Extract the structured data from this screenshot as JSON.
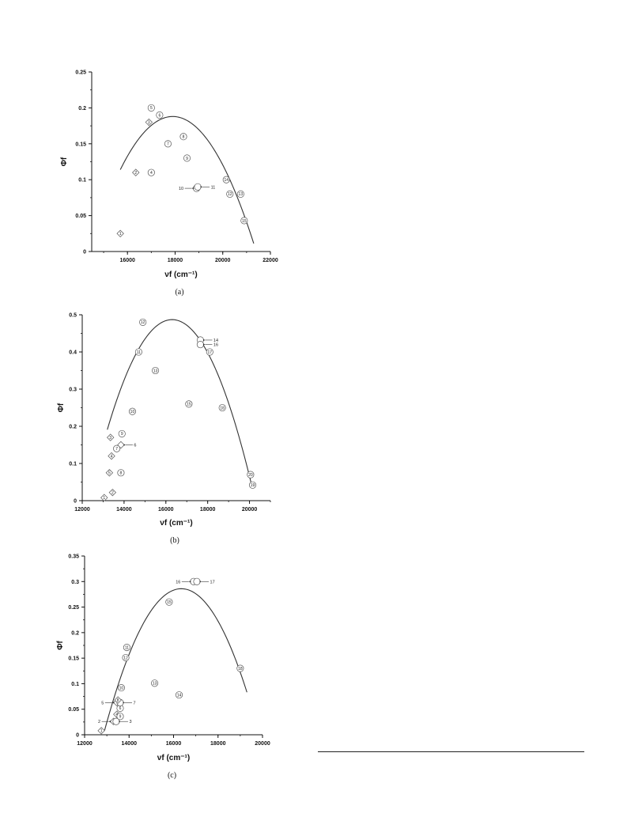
{
  "chart_data": [
    {
      "type": "scatter",
      "caption": "(a)",
      "ylabel": "Φf",
      "xlabel": "νf (cm⁻¹)",
      "xlim": [
        14500,
        22000
      ],
      "ylim": [
        0,
        0.25
      ],
      "xticks": [
        "16000",
        "18000",
        "20000",
        "22000"
      ],
      "yticks": [
        "0",
        "0.05",
        "0.1",
        "0.15",
        "0.2",
        "0.25"
      ],
      "grid": false,
      "points": [
        {
          "id": "1",
          "x": 15700,
          "y": 0.025,
          "marker": "diamond"
        },
        {
          "id": "2",
          "x": 16350,
          "y": 0.11,
          "marker": "diamond"
        },
        {
          "id": "3",
          "x": 16900,
          "y": 0.18,
          "marker": "diamond"
        },
        {
          "id": "4",
          "x": 17000,
          "y": 0.11,
          "marker": "circle"
        },
        {
          "id": "5",
          "x": 17000,
          "y": 0.2,
          "marker": "circle"
        },
        {
          "id": "6",
          "x": 17350,
          "y": 0.19,
          "marker": "circle"
        },
        {
          "id": "7",
          "x": 17700,
          "y": 0.15,
          "marker": "circle"
        },
        {
          "id": "8",
          "x": 18350,
          "y": 0.16,
          "marker": "circle"
        },
        {
          "id": "9",
          "x": 18500,
          "y": 0.13,
          "marker": "circle"
        },
        {
          "id": "10",
          "x": 18900,
          "y": 0.088,
          "marker": "circle",
          "annotation": "10",
          "annotation_side": "left"
        },
        {
          "id": "11",
          "x": 18950,
          "y": 0.09,
          "marker": "circle",
          "annotation": "11",
          "annotation_side": "right"
        },
        {
          "id": "12",
          "x": 20300,
          "y": 0.08,
          "marker": "circle"
        },
        {
          "id": "13",
          "x": 20750,
          "y": 0.08,
          "marker": "circle"
        },
        {
          "id": "14",
          "x": 20150,
          "y": 0.1,
          "marker": "circle"
        },
        {
          "id": "15",
          "x": 20900,
          "y": 0.043,
          "marker": "circle"
        }
      ],
      "fit_curve": {
        "vertex_x": 17900,
        "vertex_y": 0.188,
        "a": -1.53e-08,
        "x_from": 15700,
        "x_to": 21300
      }
    },
    {
      "type": "scatter",
      "caption": "(b)",
      "ylabel": "Φf",
      "xlabel": "νf (cm⁻¹)",
      "xlim": [
        12000,
        21000
      ],
      "ylim": [
        0,
        0.5
      ],
      "xticks": [
        "12000",
        "14000",
        "16000",
        "18000",
        "20000"
      ],
      "yticks": [
        "0",
        "0.1",
        "0.2",
        "0.3",
        "0.4",
        "0.5"
      ],
      "grid": false,
      "points": [
        {
          "id": "1",
          "x": 13050,
          "y": 0.008,
          "marker": "diamond"
        },
        {
          "id": "2",
          "x": 13450,
          "y": 0.022,
          "marker": "diamond"
        },
        {
          "id": "3",
          "x": 13350,
          "y": 0.17,
          "marker": "diamond"
        },
        {
          "id": "4",
          "x": 13400,
          "y": 0.12,
          "marker": "diamond"
        },
        {
          "id": "5",
          "x": 13300,
          "y": 0.075,
          "marker": "diamond"
        },
        {
          "id": "6",
          "x": 13850,
          "y": 0.15,
          "marker": "diamond",
          "annotation": "6",
          "annotation_side": "right"
        },
        {
          "id": "7",
          "x": 13650,
          "y": 0.14,
          "marker": "circle"
        },
        {
          "id": "8",
          "x": 13850,
          "y": 0.075,
          "marker": "circle"
        },
        {
          "id": "9",
          "x": 13900,
          "y": 0.18,
          "marker": "circle"
        },
        {
          "id": "10",
          "x": 14400,
          "y": 0.24,
          "marker": "circle"
        },
        {
          "id": "11",
          "x": 14700,
          "y": 0.4,
          "marker": "circle"
        },
        {
          "id": "12",
          "x": 14900,
          "y": 0.48,
          "marker": "circle"
        },
        {
          "id": "13",
          "x": 15500,
          "y": 0.35,
          "marker": "circle"
        },
        {
          "id": "14",
          "x": 17650,
          "y": 0.432,
          "marker": "circle",
          "annotation": "14",
          "annotation_side": "right"
        },
        {
          "id": "15",
          "x": 17100,
          "y": 0.26,
          "marker": "circle"
        },
        {
          "id": "16",
          "x": 17650,
          "y": 0.42,
          "marker": "circle",
          "annotation": "16",
          "annotation_side": "right"
        },
        {
          "id": "17",
          "x": 18100,
          "y": 0.4,
          "marker": "circle"
        },
        {
          "id": "18",
          "x": 18700,
          "y": 0.25,
          "marker": "circle"
        },
        {
          "id": "19",
          "x": 20150,
          "y": 0.042,
          "marker": "circle"
        },
        {
          "id": "20",
          "x": 20050,
          "y": 0.07,
          "marker": "circle"
        }
      ],
      "fit_curve": {
        "vertex_x": 16300,
        "vertex_y": 0.487,
        "a": -3.08e-08,
        "x_from": 13200,
        "x_to": 20100
      }
    },
    {
      "type": "scatter",
      "caption": "(c)",
      "ylabel": "Φf",
      "xlabel": "νf (cm⁻¹)",
      "xlim": [
        12000,
        20000
      ],
      "ylim": [
        0,
        0.35
      ],
      "xticks": [
        "12000",
        "14000",
        "16000",
        "18000",
        "20000"
      ],
      "yticks": [
        "0",
        "0.05",
        "0.1",
        "0.15",
        "0.2",
        "0.25",
        "0.3",
        "0.35"
      ],
      "grid": false,
      "points": [
        {
          "id": "1",
          "x": 12750,
          "y": 0.008,
          "marker": "diamond"
        },
        {
          "id": "2",
          "x": 13300,
          "y": 0.026,
          "marker": "diamond",
          "annotation": "2",
          "annotation_side": "left"
        },
        {
          "id": "3",
          "x": 13420,
          "y": 0.026,
          "marker": "circle",
          "annotation": "3",
          "annotation_side": "right"
        },
        {
          "id": "4",
          "x": 13450,
          "y": 0.04,
          "marker": "diamond"
        },
        {
          "id": "5",
          "x": 13450,
          "y": 0.063,
          "marker": "diamond",
          "annotation": "5",
          "annotation_side": "left"
        },
        {
          "id": "6",
          "x": 13600,
          "y": 0.052,
          "marker": "circle"
        },
        {
          "id": "7",
          "x": 13600,
          "y": 0.063,
          "marker": "circle",
          "annotation": "7",
          "annotation_side": "right"
        },
        {
          "id": "8",
          "x": 13500,
          "y": 0.068,
          "marker": "diamond"
        },
        {
          "id": "9",
          "x": 13600,
          "y": 0.036,
          "marker": "circle"
        },
        {
          "id": "10",
          "x": 13650,
          "y": 0.092,
          "marker": "circle"
        },
        {
          "id": "11",
          "x": 13900,
          "y": 0.171,
          "marker": "circle"
        },
        {
          "id": "12",
          "x": 13850,
          "y": 0.151,
          "marker": "circle"
        },
        {
          "id": "13",
          "x": 15150,
          "y": 0.101,
          "marker": "circle"
        },
        {
          "id": "14",
          "x": 16250,
          "y": 0.078,
          "marker": "circle"
        },
        {
          "id": "15",
          "x": 15800,
          "y": 0.26,
          "marker": "circle"
        },
        {
          "id": "16",
          "x": 16900,
          "y": 0.3,
          "marker": "circle",
          "annotation": "16",
          "annotation_side": "left"
        },
        {
          "id": "17",
          "x": 17050,
          "y": 0.3,
          "marker": "circle",
          "annotation": "17",
          "annotation_side": "right"
        },
        {
          "id": "18",
          "x": 19000,
          "y": 0.13,
          "marker": "circle"
        }
      ],
      "fit_curve": {
        "vertex_x": 16350,
        "vertex_y": 0.286,
        "a": -2.33e-08,
        "x_from": 12900,
        "x_to": 19300
      }
    }
  ]
}
